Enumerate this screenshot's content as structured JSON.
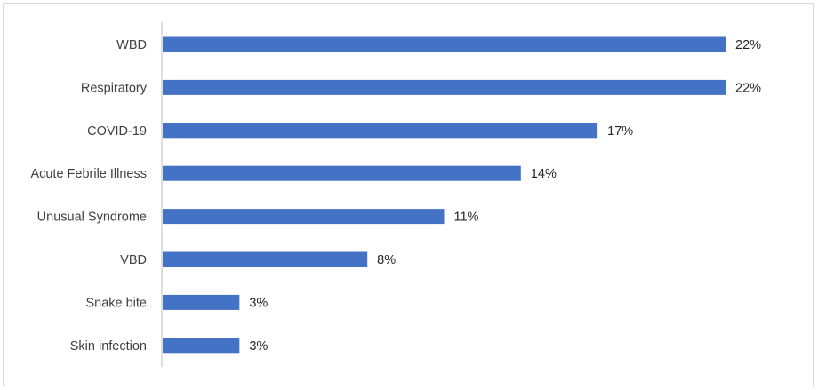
{
  "chart_data": {
    "type": "bar",
    "orientation": "horizontal",
    "categories": [
      "WBD",
      "Respiratory",
      "COVID-19",
      "Acute Febrile Illness",
      "Unusual Syndrome",
      "VBD",
      "Snake bite",
      "Skin infection"
    ],
    "values": [
      22,
      22,
      17,
      14,
      11,
      8,
      3,
      3
    ],
    "data_labels": [
      "22%",
      "22%",
      "17%",
      "14%",
      "11%",
      "8%",
      "3%",
      "3%"
    ],
    "title": "",
    "xlabel": "",
    "ylabel": "",
    "xlim": [
      0,
      25
    ],
    "grid": false,
    "legend": "none",
    "bar_color": "#4472c4",
    "axis_color": "#bfbfbf"
  }
}
